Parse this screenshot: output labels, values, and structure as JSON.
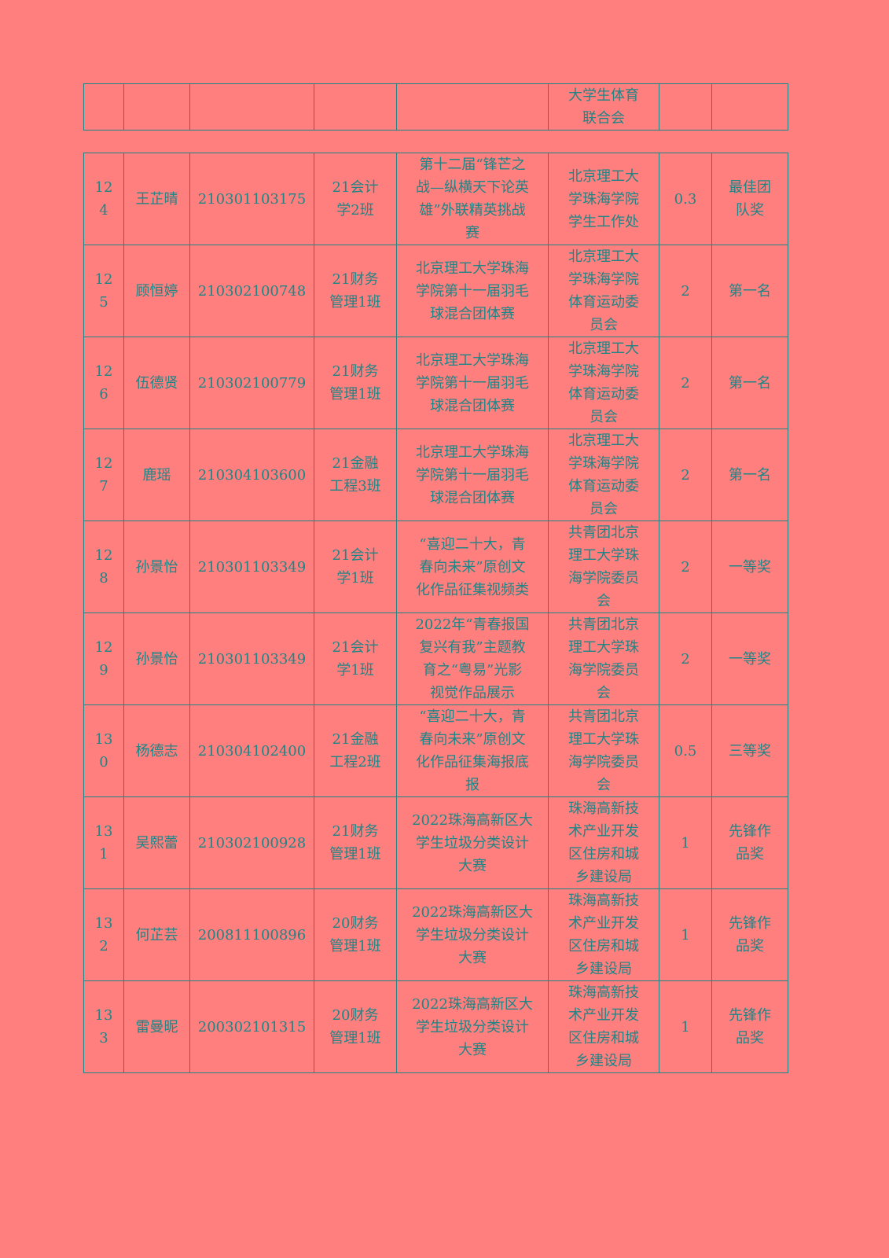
{
  "colors": {
    "background": "#ff7f7f",
    "text": "#1f8585"
  },
  "continued_row": {
    "organizer": "大学生体育\n联合会"
  },
  "rows": [
    {
      "no": "12\n4",
      "name": "王芷晴",
      "student_id": "210301103175",
      "class": "21会计\n学2班",
      "event": "第十二届“锋芒之\n战—纵横天下论英\n雄”外联精英挑战\n赛",
      "organizer": "北京理工大\n学珠海学院\n学生工作处",
      "score": "0.3",
      "award": "最佳团\n队奖"
    },
    {
      "no": "12\n5",
      "name": "顾恒婷",
      "student_id": "210302100748",
      "class": "21财务\n管理1班",
      "event": "北京理工大学珠海\n学院第十一届羽毛\n球混合团体赛",
      "organizer": "北京理工大\n学珠海学院\n体育运动委\n员会",
      "score": "2",
      "award": "第一名"
    },
    {
      "no": "12\n6",
      "name": "伍德贤",
      "student_id": "210302100779",
      "class": "21财务\n管理1班",
      "event": "北京理工大学珠海\n学院第十一届羽毛\n球混合团体赛",
      "organizer": "北京理工大\n学珠海学院\n体育运动委\n员会",
      "score": "2",
      "award": "第一名"
    },
    {
      "no": "12\n7",
      "name": "鹿瑶",
      "student_id": "210304103600",
      "class": "21金融\n工程3班",
      "event": "北京理工大学珠海\n学院第十一届羽毛\n球混合团体赛",
      "organizer": "北京理工大\n学珠海学院\n体育运动委\n员会",
      "score": "2",
      "award": "第一名"
    },
    {
      "no": "12\n8",
      "name": "孙景怡",
      "student_id": "210301103349",
      "class": "21会计\n学1班",
      "event": "“喜迎二十大，青\n春向未来”原创文\n化作品征集视频类",
      "organizer": "共青团北京\n理工大学珠\n海学院委员\n会",
      "score": "2",
      "award": "一等奖"
    },
    {
      "no": "12\n9",
      "name": "孙景怡",
      "student_id": "210301103349",
      "class": "21会计\n学1班",
      "event": "2022年“青春报国\n复兴有我”主题教\n育之“粤易”光影\n视觉作品展示",
      "organizer": "共青团北京\n理工大学珠\n海学院委员\n会",
      "score": "2",
      "award": "一等奖"
    },
    {
      "no": "13\n0",
      "name": "杨德志",
      "student_id": "210304102400",
      "class": "21金融\n工程2班",
      "event": "“喜迎二十大，青\n春向未来”原创文\n化作品征集海报底\n报",
      "organizer": "共青团北京\n理工大学珠\n海学院委员\n会",
      "score": "0.5",
      "award": "三等奖"
    },
    {
      "no": "13\n1",
      "name": "吴熙蕾",
      "student_id": "210302100928",
      "class": "21财务\n管理1班",
      "event": "2022珠海高新区大\n学生垃圾分类设计\n大赛",
      "organizer": "珠海高新技\n术产业开发\n区住房和城\n乡建设局",
      "score": "1",
      "award": "先锋作\n品奖"
    },
    {
      "no": "13\n2",
      "name": "何芷芸",
      "student_id": "200811100896",
      "class": "20财务\n管理1班",
      "event": "2022珠海高新区大\n学生垃圾分类设计\n大赛",
      "organizer": "珠海高新技\n术产业开发\n区住房和城\n乡建设局",
      "score": "1",
      "award": "先锋作\n品奖"
    },
    {
      "no": "13\n3",
      "name": "雷曼昵",
      "student_id": "200302101315",
      "class": "20财务\n管理1班",
      "event": "2022珠海高新区大\n学生垃圾分类设计\n大赛",
      "organizer": "珠海高新技\n术产业开发\n区住房和城\n乡建设局",
      "score": "1",
      "award": "先锋作\n品奖"
    }
  ]
}
